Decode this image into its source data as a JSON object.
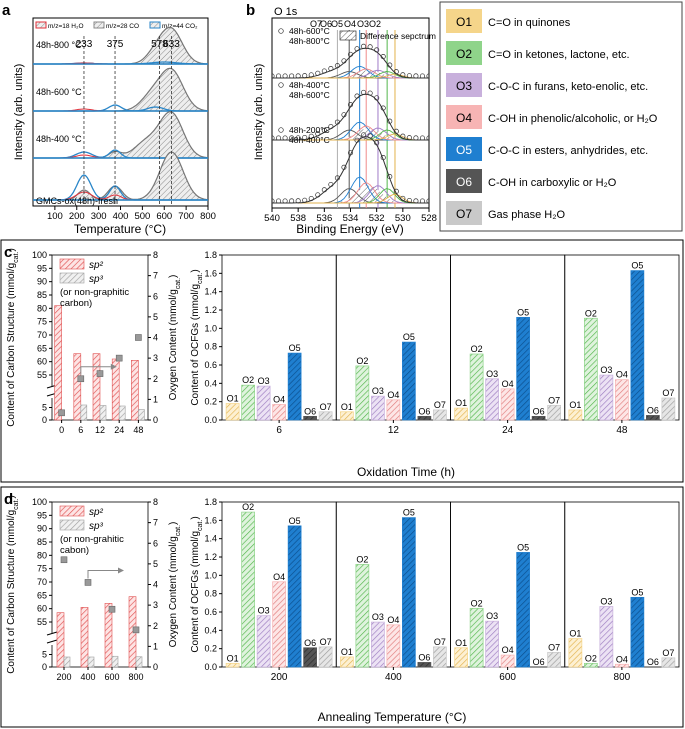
{
  "panel_a": {
    "label": "a",
    "legend": [
      {
        "text": "m/z=18 H₂O",
        "color": "#e0303a"
      },
      {
        "text": "m/z=28 CO",
        "color": "#8a8a8a"
      },
      {
        "text": "m/z=44 CO₂",
        "color": "#2a86c8"
      }
    ],
    "peak_labels": [
      "233",
      "375",
      "578",
      "633"
    ],
    "peak_positions": [
      233,
      375,
      578,
      633
    ],
    "trace_labels": [
      "48h-800 °C",
      "48h-600 °C",
      "48h-400 °C",
      "GMCs-ox(48h)-fresh"
    ],
    "ylabel": "Intensity (arb. units)",
    "xlabel": "Temperature (°C)",
    "xticks": [
      "100",
      "200",
      "300",
      "400",
      "500",
      "600",
      "700",
      "800"
    ]
  },
  "panel_b": {
    "label": "b",
    "title": "O 1s",
    "diff_legend": "Difference sepctrum",
    "top_labels": [
      "O7",
      "O6",
      "O5",
      "O4",
      "O3",
      "O2"
    ],
    "pair_labels": [
      [
        "48h-600°C",
        "48h-800°C"
      ],
      [
        "48h-400°C",
        "48h-600°C"
      ],
      [
        "48h-200°C",
        "48h-400°C"
      ]
    ],
    "ylabel": "Intensity (arb. units)",
    "xlabel": "Binding Energy (eV)",
    "xticks": [
      "540",
      "538",
      "536",
      "534",
      "532",
      "530",
      "528"
    ]
  },
  "legend_box": [
    {
      "code": "O1",
      "desc": "C=O in quinones",
      "color": "#f5d58a"
    },
    {
      "code": "O2",
      "desc": "C=O in ketones, lactone, etc.",
      "color": "#8fd48a"
    },
    {
      "code": "O3",
      "desc": "C-O-C in furans, keto-enolic, etc.",
      "color": "#c8b0dc"
    },
    {
      "code": "O4",
      "desc": "C-OH in phenolic/alcoholic, or H₂O",
      "color": "#f7b4b4"
    },
    {
      "code": "O5",
      "desc": "C-O-C in esters, anhydrides, etc.",
      "color": "#1f7fd0"
    },
    {
      "code": "O6",
      "desc": "C-OH in carboxylic or H₂O",
      "color": "#555555"
    },
    {
      "code": "O7",
      "desc": "Gas phase H₂O",
      "color": "#c9c9c9"
    }
  ],
  "panel_c": {
    "label": "c",
    "left_ylabel": "Content of Carbon Structure (mmol/g",
    "left_ylabel_sub": "cat.",
    "right_ylabel": "Oxygen Content (mmol/g",
    "right_ylabel_sub": "cat.",
    "legend": [
      "sp²",
      "sp³",
      "(or non-graphitic",
      "carbon)"
    ],
    "ocfg_ylabel": "Content of OCFGs (mmol/g",
    "ocfg_ylabel_sub": "cat.",
    "xlabel": "Oxidation Time (h)"
  },
  "panel_d": {
    "label": "d",
    "left_ylabel": "Content of Carbon Structure (mmol/g",
    "left_ylabel_sub": "cat.",
    "right_ylabel": "Oxygen Content (mmol/g",
    "right_ylabel_sub": "cat.",
    "legend": [
      "sp²",
      "sp³",
      "(or non-grahitic",
      "cabon)"
    ],
    "ocfg_ylabel": "Content of OCFGs (mmol/g",
    "ocfg_ylabel_sub": "cat.",
    "xlabel": "Annealing Temperature (°C)"
  },
  "chart_data": [
    {
      "type": "bar",
      "id": "c_left",
      "categories": [
        "0",
        "6",
        "12",
        "24",
        "48"
      ],
      "series": [
        {
          "name": "sp²",
          "values": [
            81,
            63,
            63,
            61,
            60.5
          ]
        },
        {
          "name": "sp³",
          "values": [
            0,
            6,
            5.8,
            5.6,
            4.2
          ]
        }
      ],
      "oxygen_content": [
        0.35,
        2.0,
        2.25,
        3.0,
        4.0
      ],
      "left_ticks": [
        "0",
        "5",
        "55",
        "60",
        "65",
        "70",
        "75",
        "80",
        "85",
        "90",
        "95",
        "100"
      ],
      "right_ticks": [
        "0",
        "1",
        "2",
        "3",
        "4",
        "5",
        "6",
        "7",
        "8"
      ]
    },
    {
      "type": "bar",
      "id": "c_right",
      "categories": [
        "6",
        "12",
        "24",
        "48"
      ],
      "series_names": [
        "O1",
        "O2",
        "O3",
        "O4",
        "O5",
        "O6",
        "O7"
      ],
      "values": [
        [
          0.18,
          0.38,
          0.37,
          0.17,
          0.73,
          0.04,
          0.09
        ],
        [
          0.09,
          0.59,
          0.26,
          0.22,
          0.85,
          0.04,
          0.11
        ],
        [
          0.13,
          0.72,
          0.45,
          0.34,
          1.12,
          0.04,
          0.16
        ],
        [
          0.11,
          1.11,
          0.49,
          0.44,
          1.63,
          0.05,
          0.24
        ]
      ],
      "yticks": [
        "0.0",
        "0.2",
        "0.4",
        "0.6",
        "0.8",
        "1.0",
        "1.2",
        "1.4",
        "1.6",
        "1.8"
      ],
      "ylim": [
        0,
        1.8
      ]
    },
    {
      "type": "bar",
      "id": "d_left",
      "categories": [
        "200",
        "400",
        "600",
        "800"
      ],
      "series": [
        {
          "name": "sp²",
          "values": [
            58.5,
            60.5,
            62,
            64.5
          ]
        },
        {
          "name": "sp³",
          "values": [
            4,
            4,
            4.3,
            4.1
          ]
        }
      ],
      "oxygen_content": [
        5.2,
        4.1,
        2.8,
        1.8
      ],
      "left_ticks": [
        "0",
        "5",
        "55",
        "60",
        "65",
        "70",
        "75",
        "80",
        "85",
        "90",
        "95",
        "100"
      ],
      "right_ticks": [
        "0",
        "1",
        "2",
        "3",
        "4",
        "5",
        "6",
        "7",
        "8"
      ]
    },
    {
      "type": "bar",
      "id": "d_right",
      "categories": [
        "200",
        "400",
        "600",
        "800"
      ],
      "series_names": [
        "O1",
        "O2",
        "O3",
        "O4",
        "O5",
        "O6",
        "O7"
      ],
      "values": [
        [
          0.04,
          1.69,
          0.56,
          0.93,
          1.54,
          0.21,
          0.22
        ],
        [
          0.11,
          1.12,
          0.49,
          0.46,
          1.63,
          0.05,
          0.22
        ],
        [
          0.21,
          0.64,
          0.5,
          0.13,
          1.25,
          0,
          0.16
        ],
        [
          0.31,
          0.04,
          0.66,
          0.03,
          0.76,
          0,
          0.1
        ]
      ],
      "yticks": [
        "0.0",
        "0.2",
        "0.4",
        "0.6",
        "0.8",
        "1.0",
        "1.2",
        "1.4",
        "1.6",
        "1.8"
      ],
      "ylim": [
        0,
        1.8
      ]
    }
  ]
}
